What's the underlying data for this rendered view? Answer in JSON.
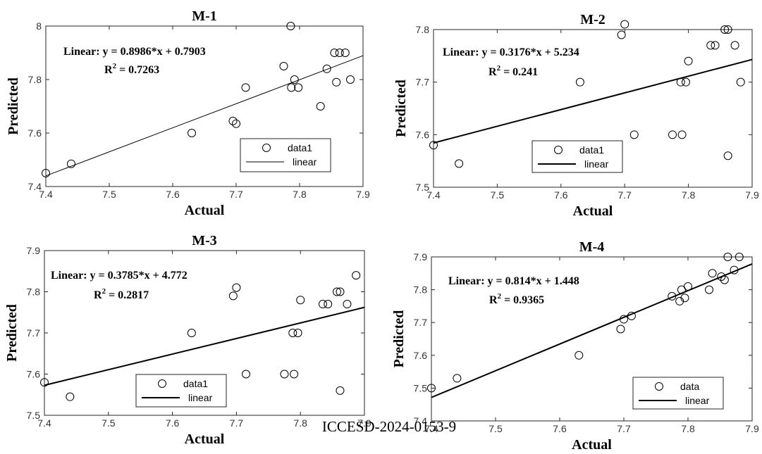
{
  "watermark": "ICCESD-2024-0153-9",
  "chart_data": [
    {
      "type": "scatter",
      "title": "M-1",
      "xlabel": "Actual",
      "ylabel": "Predicted",
      "xlim": [
        7.4,
        7.9
      ],
      "ylim": [
        7.4,
        8.0
      ],
      "xticks": [
        7.4,
        7.5,
        7.6,
        7.7,
        7.8,
        7.9
      ],
      "yticks": [
        7.4,
        7.6,
        7.8,
        8.0
      ],
      "ytick_labels": [
        "7.4",
        "7.6",
        "7.8",
        "8"
      ],
      "equation": "Linear:  y = 0.8986*x + 0.7903",
      "r2_label": "R",
      "r2_sup": "2",
      "r2_value": " = 0.7263",
      "fit": {
        "slope": 0.8986,
        "intercept": 0.7903
      },
      "fit_style": "thin",
      "legend": {
        "position": "bottom-right",
        "entries": [
          "data1",
          "linear"
        ]
      },
      "points": [
        [
          7.4,
          7.45
        ],
        [
          7.44,
          7.485
        ],
        [
          7.63,
          7.6
        ],
        [
          7.695,
          7.645
        ],
        [
          7.7,
          7.635
        ],
        [
          7.715,
          7.77
        ],
        [
          7.775,
          7.85
        ],
        [
          7.786,
          8.0
        ],
        [
          7.787,
          7.77
        ],
        [
          7.792,
          7.8
        ],
        [
          7.798,
          7.77
        ],
        [
          7.833,
          7.7
        ],
        [
          7.843,
          7.84
        ],
        [
          7.855,
          7.9
        ],
        [
          7.858,
          7.79
        ],
        [
          7.863,
          7.9
        ],
        [
          7.872,
          7.9
        ],
        [
          7.88,
          7.8
        ]
      ]
    },
    {
      "type": "scatter",
      "title": "M-2",
      "xlabel": "Actual",
      "ylabel": "Predicted",
      "xlim": [
        7.4,
        7.9
      ],
      "ylim": [
        7.5,
        7.8
      ],
      "xticks": [
        7.4,
        7.5,
        7.6,
        7.7,
        7.8,
        7.9
      ],
      "yticks": [
        7.5,
        7.6,
        7.7,
        7.8
      ],
      "ytick_labels": [
        "7.5",
        "7.6",
        "7.7",
        "7.8"
      ],
      "equation": "Linear:  y = 0.3176*x + 5.234",
      "r2_label": "R",
      "r2_sup": "2",
      "r2_value": " = 0.241",
      "fit": {
        "slope": 0.3176,
        "intercept": 5.234
      },
      "fit_style": "thick",
      "legend": {
        "position": "bottom-right",
        "entries": [
          "data1",
          "linear"
        ]
      },
      "points": [
        [
          7.4,
          7.58
        ],
        [
          7.44,
          7.545
        ],
        [
          7.63,
          7.7
        ],
        [
          7.695,
          7.79
        ],
        [
          7.7,
          7.81
        ],
        [
          7.715,
          7.6
        ],
        [
          7.775,
          7.6
        ],
        [
          7.788,
          7.7
        ],
        [
          7.79,
          7.6
        ],
        [
          7.796,
          7.7
        ],
        [
          7.8,
          7.74
        ],
        [
          7.835,
          7.77
        ],
        [
          7.842,
          7.77
        ],
        [
          7.857,
          7.8
        ],
        [
          7.862,
          7.8
        ],
        [
          7.862,
          7.56
        ],
        [
          7.873,
          7.77
        ],
        [
          7.882,
          7.7
        ]
      ]
    },
    {
      "type": "scatter",
      "title": "M-3",
      "xlabel": "Actual",
      "ylabel": "Predicted",
      "xlim": [
        7.4,
        7.9
      ],
      "ylim": [
        7.5,
        7.9
      ],
      "xticks": [
        7.4,
        7.5,
        7.6,
        7.7,
        7.8,
        7.9
      ],
      "yticks": [
        7.5,
        7.6,
        7.7,
        7.8,
        7.9
      ],
      "ytick_labels": [
        "7.5",
        "7.6",
        "7.7",
        "7.8",
        "7.9"
      ],
      "equation": "Linear:  y = 0.3785*x + 4.772",
      "r2_label": "R",
      "r2_sup": "2",
      "r2_value": " = 0.2817",
      "fit": {
        "slope": 0.3785,
        "intercept": 4.772
      },
      "fit_style": "thick",
      "legend": {
        "position": "bottom-center",
        "entries": [
          "data1",
          "linear"
        ]
      },
      "points": [
        [
          7.4,
          7.58
        ],
        [
          7.44,
          7.545
        ],
        [
          7.63,
          7.7
        ],
        [
          7.695,
          7.79
        ],
        [
          7.7,
          7.81
        ],
        [
          7.715,
          7.6
        ],
        [
          7.775,
          7.6
        ],
        [
          7.788,
          7.7
        ],
        [
          7.79,
          7.6
        ],
        [
          7.796,
          7.7
        ],
        [
          7.8,
          7.78
        ],
        [
          7.835,
          7.77
        ],
        [
          7.843,
          7.77
        ],
        [
          7.857,
          7.8
        ],
        [
          7.862,
          7.8
        ],
        [
          7.862,
          7.56
        ],
        [
          7.873,
          7.77
        ],
        [
          7.887,
          7.84
        ]
      ]
    },
    {
      "type": "scatter",
      "title": "M-4",
      "xlabel": "Actual",
      "ylabel": "Predicted",
      "xlim": [
        7.4,
        7.9
      ],
      "ylim": [
        7.4,
        7.9
      ],
      "xticks": [
        7.4,
        7.5,
        7.6,
        7.7,
        7.8,
        7.9
      ],
      "yticks": [
        7.4,
        7.5,
        7.6,
        7.7,
        7.8,
        7.9
      ],
      "ytick_labels": [
        "7.4",
        "7.5",
        "7.6",
        "7.7",
        "7.8",
        "7.9"
      ],
      "equation": "Linear:  y = 0.814*x + 1.448",
      "r2_label": "R",
      "r2_sup": "2",
      "r2_value": " = 0.9365",
      "fit": {
        "slope": 0.814,
        "intercept": 1.448
      },
      "fit_style": "thick",
      "legend": {
        "position": "bottom-right",
        "entries": [
          "data",
          "linear"
        ]
      },
      "points": [
        [
          7.4,
          7.5
        ],
        [
          7.44,
          7.53
        ],
        [
          7.63,
          7.6
        ],
        [
          7.695,
          7.68
        ],
        [
          7.7,
          7.71
        ],
        [
          7.712,
          7.72
        ],
        [
          7.775,
          7.78
        ],
        [
          7.787,
          7.765
        ],
        [
          7.79,
          7.8
        ],
        [
          7.795,
          7.775
        ],
        [
          7.8,
          7.81
        ],
        [
          7.833,
          7.8
        ],
        [
          7.838,
          7.85
        ],
        [
          7.852,
          7.84
        ],
        [
          7.857,
          7.83
        ],
        [
          7.862,
          7.9
        ],
        [
          7.872,
          7.86
        ],
        [
          7.88,
          7.9
        ]
      ]
    }
  ]
}
